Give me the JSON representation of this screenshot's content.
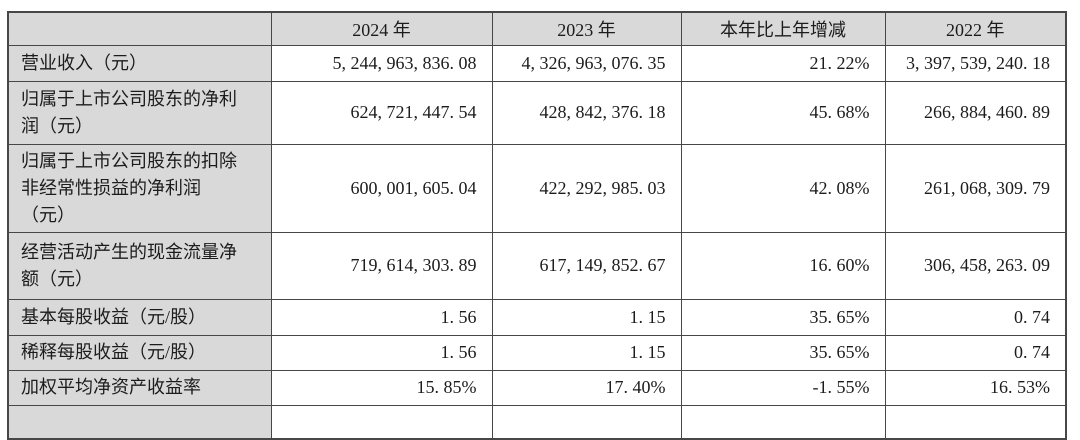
{
  "table": {
    "columns": [
      "",
      "2024 年",
      "2023 年",
      "本年比上年增减",
      "2022 年"
    ],
    "rows": [
      {
        "label": "营业收入（元）",
        "values": [
          "5, 244, 963, 836. 08",
          "4, 326, 963, 076. 35",
          "21. 22%",
          "3, 397, 539, 240. 18"
        ]
      },
      {
        "label": "归属于上市公司股东的净利\n润（元）",
        "values": [
          "624, 721, 447. 54",
          "428, 842, 376. 18",
          "45. 68%",
          "266, 884, 460. 89"
        ]
      },
      {
        "label": "归属于上市公司股东的扣除\n非经常性损益的净利润\n（元）",
        "values": [
          "600, 001, 605. 04",
          "422, 292, 985. 03",
          "42. 08%",
          "261, 068, 309. 79"
        ]
      },
      {
        "label": "经营活动产生的现金流量净\n额（元）",
        "values": [
          "719, 614, 303. 89",
          "617, 149, 852. 67",
          "16. 60%",
          "306, 458, 263. 09"
        ]
      },
      {
        "label": "基本每股收益（元/股）",
        "values": [
          "1. 56",
          "1. 15",
          "35. 65%",
          "0. 74"
        ]
      },
      {
        "label": "稀释每股收益（元/股）",
        "values": [
          "1. 56",
          "1. 15",
          "35. 65%",
          "0. 74"
        ]
      },
      {
        "label": "加权平均净资产收益率",
        "values": [
          "15. 85%",
          "17. 40%",
          "-1. 55%",
          "16. 53%"
        ]
      },
      {
        "label": "",
        "values": [
          "",
          "",
          "",
          ""
        ]
      }
    ],
    "colors": {
      "header_background": "#d9d9d9",
      "label_background": "#d9d9d9",
      "cell_background": "#ffffff",
      "border": "#474747",
      "text": "#1c1c1c"
    }
  }
}
